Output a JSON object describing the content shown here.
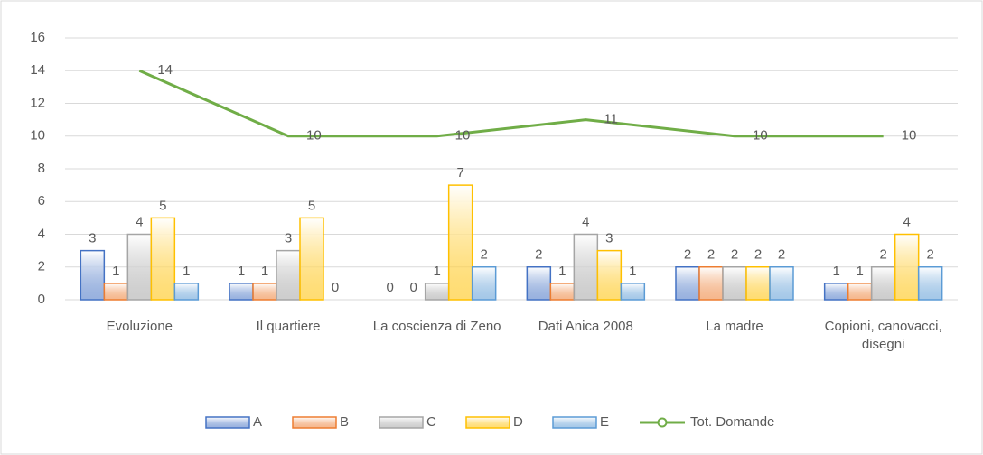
{
  "chart_data": {
    "type": "bar",
    "categories": [
      "Evoluzione",
      "Il quartiere",
      "La coscienza di Zeno",
      "Dati Anica 2008",
      "La madre",
      "Copioni, canovacci, disegni"
    ],
    "series": [
      {
        "name": "A",
        "color": "#4472c4",
        "values": [
          3,
          1,
          0,
          2,
          2,
          1
        ]
      },
      {
        "name": "B",
        "color": "#ed7d31",
        "values": [
          1,
          1,
          0,
          1,
          2,
          1
        ]
      },
      {
        "name": "C",
        "color": "#a5a5a5",
        "values": [
          4,
          3,
          1,
          4,
          2,
          2
        ]
      },
      {
        "name": "D",
        "color": "#ffc000",
        "values": [
          5,
          5,
          7,
          3,
          2,
          4
        ]
      },
      {
        "name": "E",
        "color": "#5b9bd5",
        "values": [
          1,
          0,
          2,
          1,
          2,
          2
        ]
      },
      {
        "name": "Tot. Domande",
        "type": "line",
        "color": "#70ad47",
        "values": [
          14,
          10,
          10,
          11,
          10,
          10
        ]
      }
    ],
    "ylim": [
      0,
      16
    ],
    "yticks": [
      0,
      2,
      4,
      6,
      8,
      10,
      12,
      14,
      16
    ],
    "grid": true,
    "legend": "bottom"
  }
}
